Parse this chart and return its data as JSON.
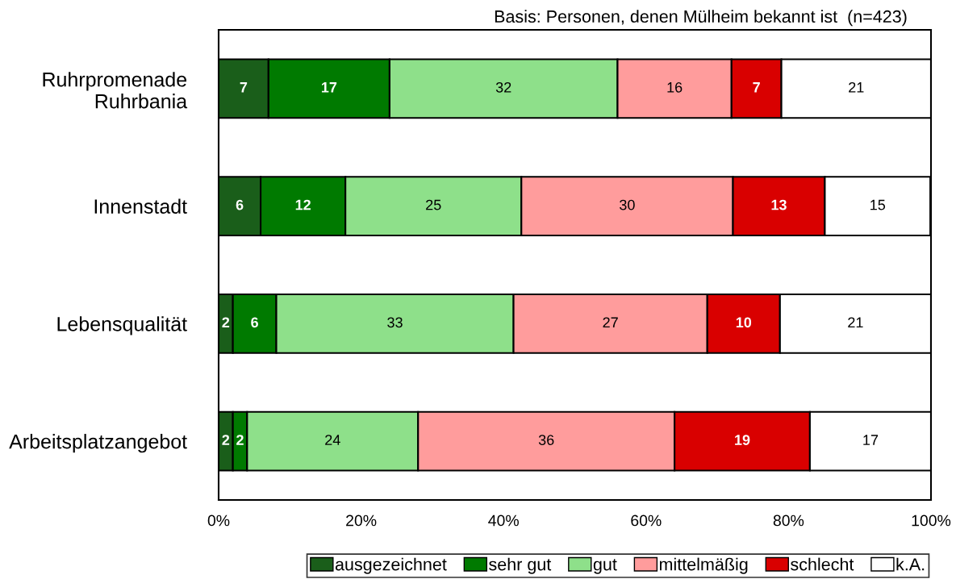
{
  "chart_data": {
    "type": "bar",
    "orientation": "horizontal",
    "stacked": true,
    "categories": [
      "Ruhrpromenade\nRuhrbania",
      "Innenstadt",
      "Lebensqualität",
      "Arbeitsplatzangebot"
    ],
    "series": [
      {
        "name": "ausgezeichnet",
        "color": "#1a5e1a",
        "values": [
          7,
          5.9,
          2.0,
          2
        ],
        "value_labels": [
          "7",
          "6",
          "2",
          "2"
        ]
      },
      {
        "name": "sehr gut",
        "color": "#007a00",
        "values": [
          17,
          11.9,
          6.1,
          2
        ],
        "value_labels": [
          "17",
          "12",
          "6",
          "2"
        ]
      },
      {
        "name": "gut",
        "color": "#8ee08a",
        "values": [
          32,
          24.7,
          33.3,
          24
        ],
        "value_labels": [
          "32",
          "25",
          "33",
          "24"
        ]
      },
      {
        "name": "mittelmäßig",
        "color": "#ff9c9c",
        "values": [
          16,
          29.7,
          27.2,
          36
        ],
        "value_labels": [
          "16",
          "30",
          "27",
          "36"
        ]
      },
      {
        "name": "schlecht",
        "color": "#d90000",
        "values": [
          7,
          12.9,
          10.2,
          19
        ],
        "value_labels": [
          "7",
          "13",
          "10",
          "19"
        ]
      },
      {
        "name": "k.A.",
        "color": "#ffffff",
        "values": [
          21,
          14.8,
          21.2,
          17
        ],
        "value_labels": [
          "21",
          "15",
          "21",
          "17"
        ]
      }
    ],
    "xlim": [
      0,
      100
    ],
    "xticks": [
      {
        "value": 0,
        "label": "0%"
      },
      {
        "value": 20,
        "label": "20%"
      },
      {
        "value": 40,
        "label": "40%"
      },
      {
        "value": 60,
        "label": "60%"
      },
      {
        "value": 80,
        "label": "80%"
      },
      {
        "value": 100,
        "label": "100%"
      }
    ],
    "annotations": [
      "Basis: Personen, denen Mülheim bekannt ist  (n=423)"
    ],
    "legend": "bottom",
    "grid": false
  }
}
